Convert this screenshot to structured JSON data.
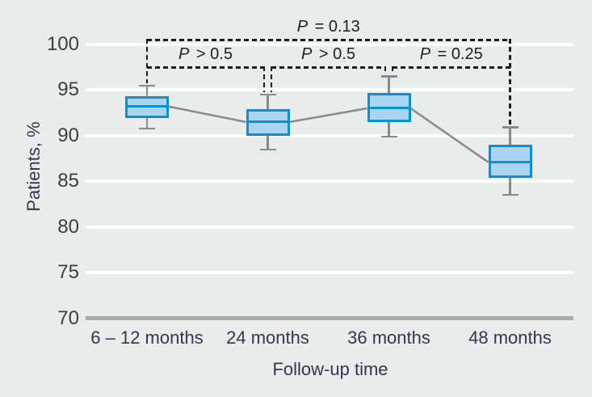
{
  "chart_data": {
    "type": "boxplot",
    "xlabel": "Follow-up time",
    "ylabel": "Patients, %",
    "categories": [
      "6 – 12 months",
      "24 months",
      "36 months",
      "48 months"
    ],
    "yticks": [
      100,
      95,
      90,
      85,
      80,
      75,
      70
    ],
    "ylim": [
      70,
      101.5
    ],
    "grid": "horizontal-white-gridlines-on-gray-background",
    "legend": "none",
    "series": [
      {
        "category": "6 – 12 months",
        "low": 90.8,
        "q1": 91.9,
        "median": 93.2,
        "q3": 94.3,
        "high": 95.5
      },
      {
        "category": "24 months",
        "low": 88.5,
        "q1": 90.0,
        "median": 91.5,
        "q3": 92.9,
        "high": 94.5
      },
      {
        "category": "36 months",
        "low": 89.9,
        "q1": 91.5,
        "median": 93.0,
        "q3": 94.7,
        "high": 96.5
      },
      {
        "category": "48 months",
        "low": 83.5,
        "q1": 85.4,
        "median": 87.1,
        "q3": 89.0,
        "high": 90.9
      }
    ],
    "median_trend_line": true,
    "annotations": [
      {
        "symbol": "P",
        "text": "= 0.13",
        "from": "6 – 12 months",
        "to": "48 months",
        "row": "top"
      },
      {
        "symbol": "P",
        "text": "> 0.5",
        "from": "6 – 12 months",
        "to": "24 months",
        "row": "sub"
      },
      {
        "symbol": "P",
        "text": "> 0.5",
        "from": "24 months",
        "to": "36 months",
        "row": "sub"
      },
      {
        "symbol": "P",
        "text": "= 0.25",
        "from": "36 months",
        "to": "48 months",
        "row": "sub"
      }
    ],
    "colors": {
      "background": "#eaebeb",
      "box_fill": "#aad4f0",
      "box_border": "#0b90d4",
      "median": "#0b90d4",
      "whisker": "#8a8a8a",
      "trend_line": "#8a8a8a",
      "gridline": "#ffffff",
      "baseline_70": "#a9a9a9",
      "bracket": "#1c1c1c",
      "tick_text": "#3e3f3d",
      "label_text": "#2e3b4d"
    }
  }
}
